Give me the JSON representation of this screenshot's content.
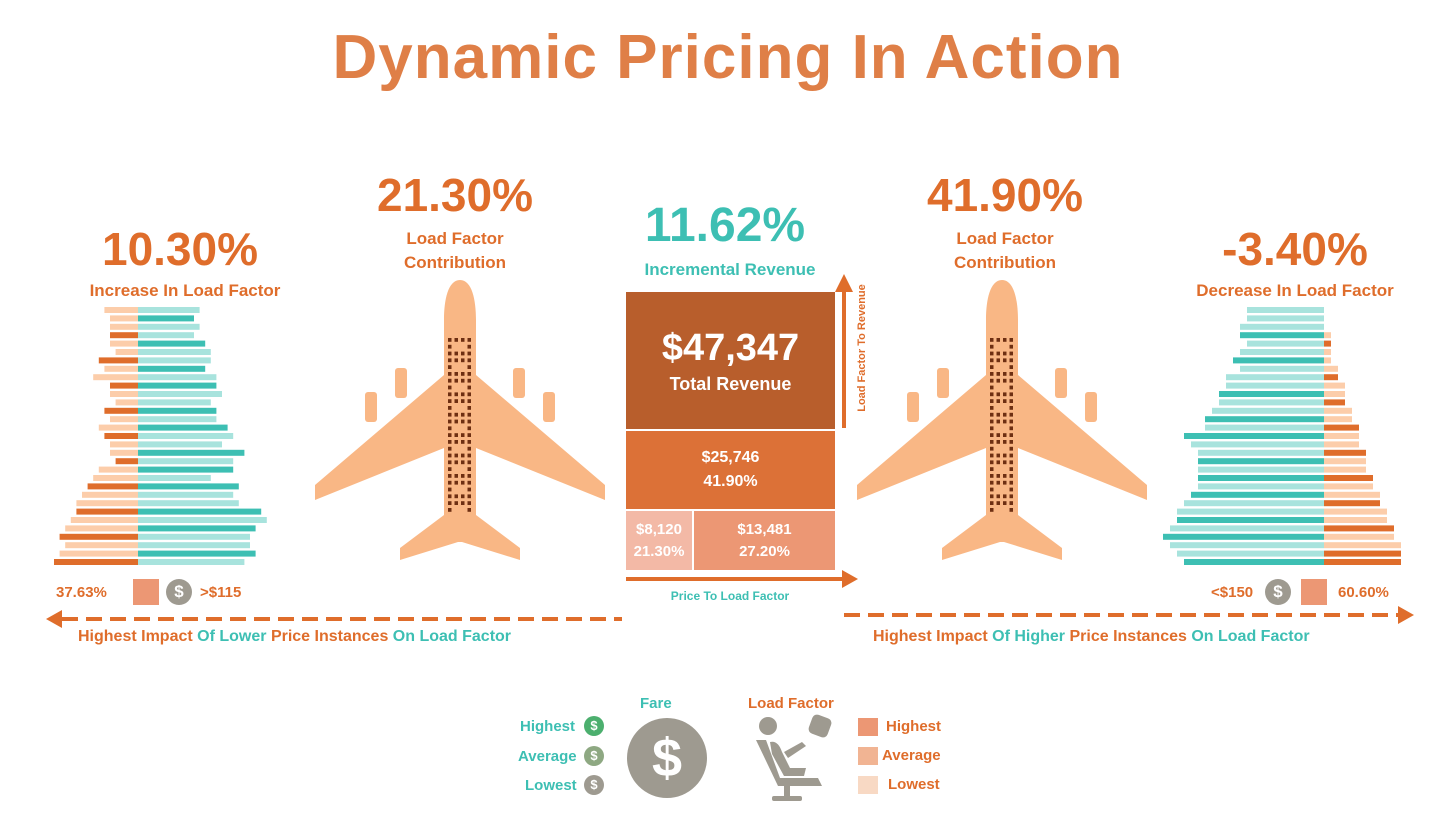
{
  "title": "Dynamic Pricing In Action",
  "left": {
    "value": "10.30%",
    "label": "Increase In Load Factor",
    "pct": "37.63%",
    "price": ">$115",
    "arrow_text": {
      "a": "Highest Impact",
      "b": "Of Lower",
      "c": "Price Instances",
      "d": "On Load Factor"
    }
  },
  "left_plane": {
    "value": "21.30%",
    "label_1": "Load Factor",
    "label_2": "Contribution"
  },
  "center": {
    "value": "11.62%",
    "label": "Incremental Revenue",
    "total_value": "$47,347",
    "total_label": "Total Revenue",
    "mid_value": "$25,746",
    "mid_pct": "41.90%",
    "bl_value": "$8,120",
    "bl_pct": "21.30%",
    "br_value": "$13,481",
    "br_pct": "27.20%",
    "x_axis": "Price To Load Factor",
    "y_axis": "Load Factor To Revenue"
  },
  "right_plane": {
    "value": "41.90%",
    "label_1": "Load Factor",
    "label_2": "Contribution"
  },
  "right": {
    "value": "-3.40%",
    "label": "Decrease In Load Factor",
    "pct": "60.60%",
    "price": "<$150",
    "arrow_text": {
      "a": "Highest Impact",
      "b": "Of Higher",
      "c": "Price Instances",
      "d": "On Load Factor"
    }
  },
  "legend": {
    "fare_title": "Fare",
    "lf_title": "Load Factor",
    "fare_items": [
      "Highest",
      "Average",
      "Lowest"
    ],
    "lf_items": [
      "Highest",
      "Average",
      "Lowest"
    ],
    "coin_symbol": "$"
  },
  "colors": {
    "orange": "#DF6D2B",
    "title_orange": "#DF7F47",
    "teal": "#3DBFB3",
    "light_teal": "#A8E3DD",
    "peach": "#F9B785",
    "light_peach": "#FCCDAA",
    "dark_orange": "#B85E2C",
    "mid_orange": "#DC7137",
    "salmon": "#EC9774",
    "pink": "#F3B9A6",
    "gray": "#9E9A90"
  },
  "chart_data": [
    {
      "type": "bar",
      "name_note": "left distribution: each row has an orange part (left of axis) and a teal part (right of axis), values are relative lengths",
      "orange": [
        6,
        5,
        5,
        5,
        5,
        4,
        7,
        6,
        8,
        5,
        5,
        4,
        6,
        5,
        7,
        6,
        5,
        5,
        4,
        7,
        8,
        9,
        10,
        11,
        11,
        12,
        13,
        14,
        13,
        14,
        15
      ],
      "teal": [
        11,
        10,
        11,
        10,
        12,
        13,
        13,
        12,
        14,
        14,
        15,
        13,
        14,
        14,
        16,
        17,
        15,
        19,
        17,
        17,
        13,
        18,
        17,
        18,
        22,
        23,
        21,
        20,
        20,
        21,
        19
      ],
      "dark_orange_rows": [
        3,
        6,
        9,
        12,
        15,
        18,
        21,
        24,
        27,
        30
      ],
      "dark_teal_rows": [
        1,
        4,
        7,
        9,
        12,
        14,
        17,
        19,
        21,
        24,
        26,
        29
      ]
    },
    {
      "type": "bar",
      "name_note": "right distribution: teal part (left of axis) and orange part (right of axis)",
      "teal": [
        11,
        11,
        12,
        12,
        11,
        12,
        13,
        12,
        14,
        14,
        15,
        15,
        16,
        17,
        17,
        20,
        19,
        18,
        18,
        18,
        18,
        18,
        19,
        20,
        21,
        21,
        22,
        23,
        22,
        21,
        20
      ],
      "orange": [
        0,
        0,
        0,
        1,
        1,
        1,
        1,
        2,
        2,
        3,
        3,
        3,
        4,
        4,
        5,
        5,
        5,
        6,
        6,
        6,
        7,
        7,
        8,
        8,
        9,
        9,
        10,
        10,
        11,
        11,
        11
      ],
      "dark_orange_rows": [
        4,
        8,
        11,
        14,
        17,
        20,
        23,
        26,
        29,
        30
      ],
      "dark_teal_rows": [
        3,
        6,
        10,
        13,
        15,
        18,
        20,
        22,
        25,
        27,
        30
      ]
    }
  ]
}
